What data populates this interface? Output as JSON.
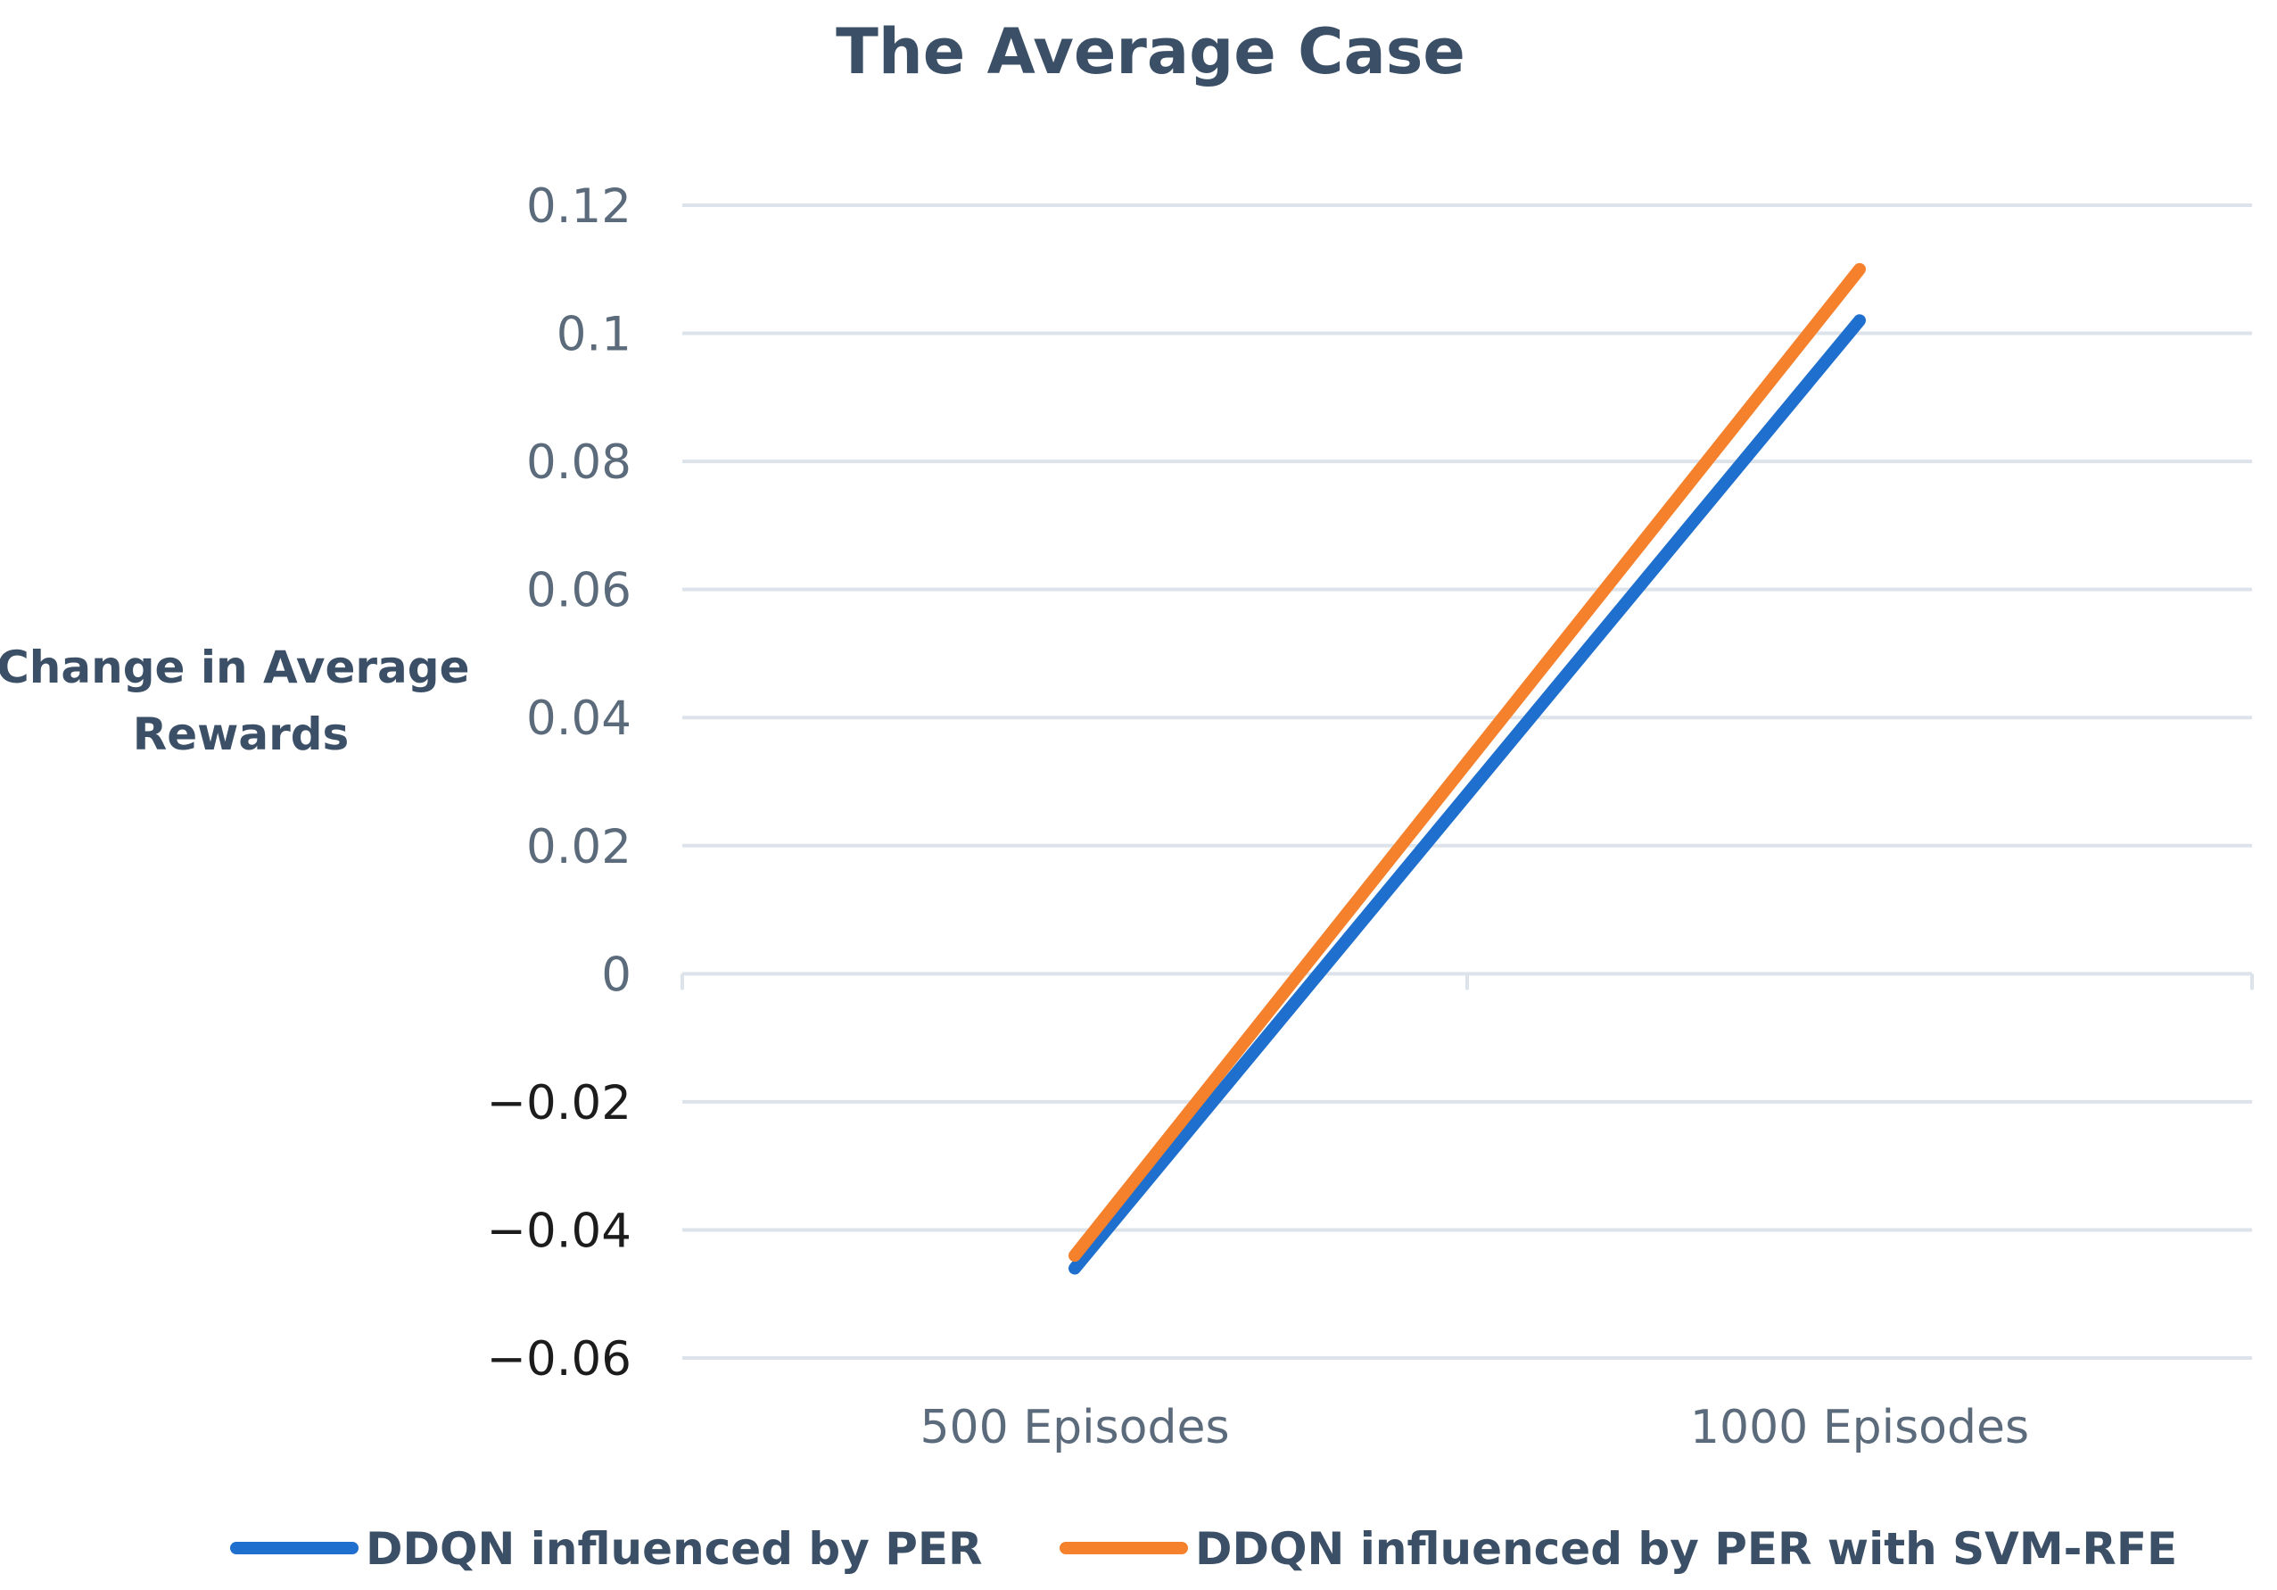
{
  "chart_data": {
    "type": "line",
    "title": "The Average Case",
    "ylabel": "Change in Average Rewards",
    "ylabel_lines": [
      "Change in Average",
      "Rewards"
    ],
    "xlabel": "",
    "categories": [
      "500 Episodes",
      "1000 Episodes"
    ],
    "ylim": [
      -0.06,
      0.12
    ],
    "yticks": [
      0.12,
      0.1,
      0.08,
      0.06,
      0.04,
      0.02,
      0,
      -0.02,
      -0.04,
      -0.06
    ],
    "ytick_labels": [
      "0.12",
      "0.1",
      "0.08",
      "0.06",
      "0.04",
      "0.02",
      "0",
      "−0.02",
      "−0.04",
      "−0.06"
    ],
    "grid": true,
    "legend_position": "bottom",
    "series": [
      {
        "name": "DDQN influenced by PER",
        "values": [
          -0.046,
          0.102
        ],
        "color": "#1f6fce"
      },
      {
        "name": "DDQN influenced by PER with SVM-RFE",
        "values": [
          -0.044,
          0.11
        ],
        "color": "#f5812d"
      }
    ],
    "colors": {
      "title": "#3b4f66",
      "grid": "#dde3ea",
      "positive_tick": "#5b6b7b",
      "negative_tick": "#1c1c1c"
    }
  }
}
